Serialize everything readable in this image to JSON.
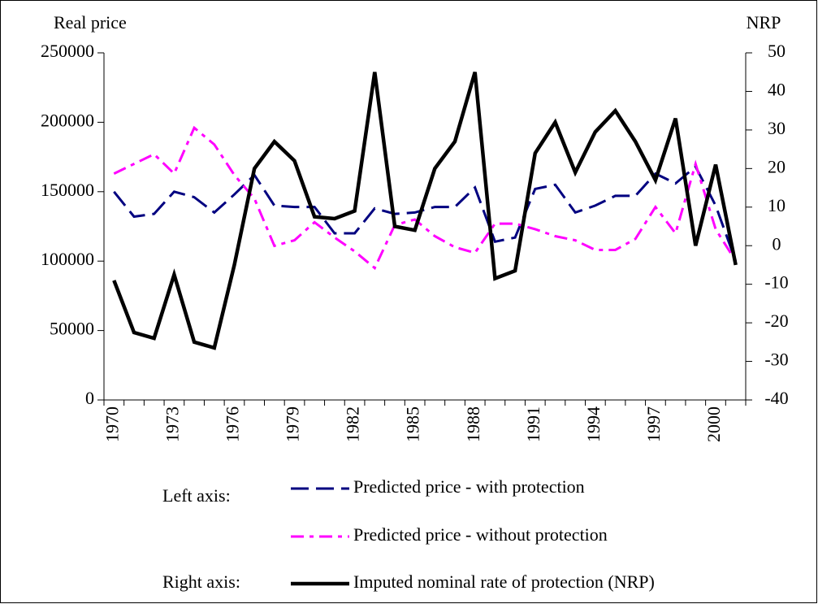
{
  "chart_data": {
    "type": "line",
    "y_label": "Real price",
    "y2_label": "NRP",
    "categories": [
      "1970",
      null,
      null,
      "1973",
      null,
      null,
      "1976",
      null,
      null,
      "1979",
      null,
      null,
      "1982",
      null,
      null,
      "1985",
      null,
      null,
      "1988",
      null,
      null,
      "1991",
      null,
      null,
      "1994",
      null,
      null,
      "1997",
      null,
      null,
      "2000",
      null
    ],
    "ylim": [
      0,
      250000
    ],
    "yticks": [
      0,
      50000,
      100000,
      150000,
      200000,
      250000
    ],
    "y2lim": [
      -40,
      50
    ],
    "y2ticks": [
      -40,
      -30,
      -20,
      -10,
      0,
      10,
      20,
      30,
      40,
      50
    ],
    "legend_groups": [
      "Left axis:",
      "Right axis:"
    ],
    "series": [
      {
        "name": "Predicted price - with protection",
        "color": "#000080",
        "line_style": "dashed",
        "axis": "y",
        "values": [
          150000,
          132000,
          134000,
          150000,
          146000,
          135000,
          148000,
          162000,
          140000,
          139000,
          139000,
          120000,
          120000,
          138000,
          134000,
          135000,
          139000,
          139000,
          153000,
          114000,
          117000,
          152000,
          155000,
          135000,
          140000,
          147000,
          147000,
          163000,
          156000,
          168000,
          140000,
          100000
        ]
      },
      {
        "name": "Predicted price - without protection",
        "color": "#ff00ff",
        "line_style": "dashdot",
        "axis": "y",
        "values": [
          163000,
          170000,
          177000,
          163000,
          196000,
          184000,
          162000,
          145000,
          111000,
          115000,
          128000,
          117000,
          107000,
          95000,
          126000,
          130000,
          118000,
          110000,
          106000,
          127000,
          127000,
          123000,
          118000,
          115000,
          108000,
          108000,
          116000,
          139000,
          120000,
          170000,
          123000,
          100000
        ]
      },
      {
        "name": "Imputed nominal rate of protection (NRP)",
        "color": "#000000",
        "line_style": "solid",
        "axis": "y2",
        "values": [
          -9,
          -22.5,
          -24,
          -7.5,
          -25,
          -26.5,
          -5,
          20,
          27,
          22,
          7.5,
          7,
          9,
          45,
          5,
          4,
          20,
          27,
          45,
          -8.5,
          -6.5,
          24,
          32,
          19,
          29.5,
          35,
          27,
          17,
          33,
          0,
          21,
          -5
        ]
      }
    ]
  }
}
